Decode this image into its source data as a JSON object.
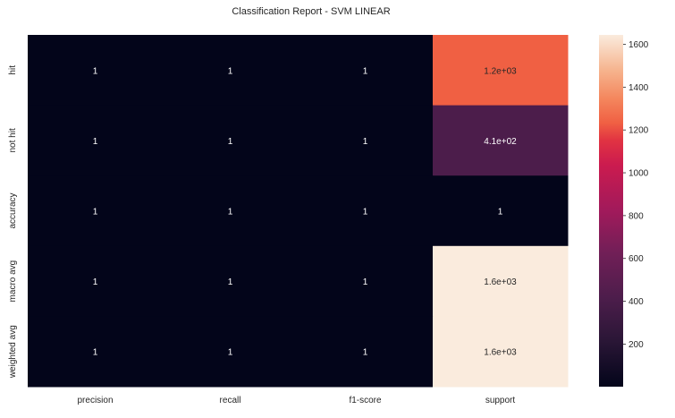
{
  "chart_data": {
    "type": "heatmap",
    "title": "Classification Report - SVM LINEAR",
    "xlabel": "",
    "ylabel": "",
    "columns": [
      "precision",
      "recall",
      "f1-score",
      "support"
    ],
    "rows": [
      "hit",
      "not hit",
      "accuracy",
      "macro avg",
      "weighted avg"
    ],
    "values": [
      [
        1,
        1,
        1,
        1234
      ],
      [
        1,
        1,
        1,
        410
      ],
      [
        1,
        1,
        1,
        1
      ],
      [
        1,
        1,
        1,
        1644
      ],
      [
        1,
        1,
        1,
        1644
      ]
    ],
    "cell_labels": [
      [
        "1",
        "1",
        "1",
        "1.2e+03"
      ],
      [
        "1",
        "1",
        "1",
        "4.1e+02"
      ],
      [
        "1",
        "1",
        "1",
        "1"
      ],
      [
        "1",
        "1",
        "1",
        "1.6e+03"
      ],
      [
        "1",
        "1",
        "1",
        "1.6e+03"
      ]
    ],
    "colorbar": {
      "min": 1,
      "max": 1644,
      "ticks": [
        200,
        400,
        600,
        800,
        1000,
        1200,
        1400,
        1600
      ],
      "colormap": "rocket"
    },
    "grid": false
  }
}
